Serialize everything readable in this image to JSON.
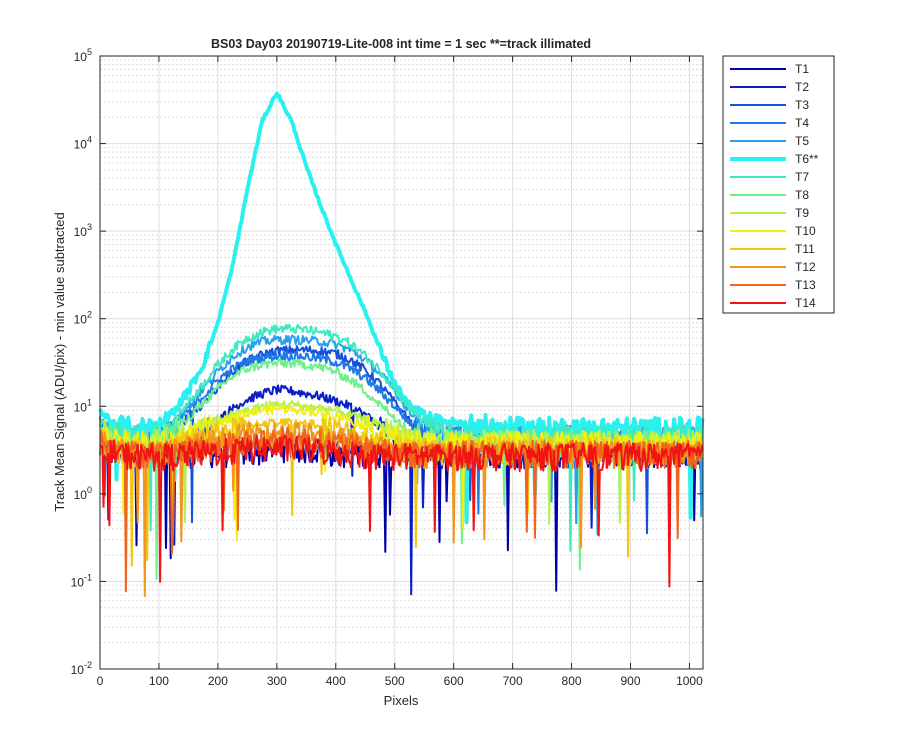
{
  "chart_data": {
    "type": "line",
    "title": "BS03 Day03 20190719-Lite-008 int time = 1 sec    **=track illimated",
    "xlabel": "Pixels",
    "ylabel": "Track Mean Signal (ADU/pix) - min value subtracted",
    "xlim": [
      0,
      1023
    ],
    "ylim": [
      0.01,
      100000
    ],
    "y_scale": "log",
    "grid": true,
    "minor_grid": true,
    "legend_position": "outside-right",
    "x_ticks": [
      "0",
      "100",
      "200",
      "300",
      "400",
      "500",
      "600",
      "700",
      "800",
      "900",
      "1000"
    ],
    "y_ticks": [
      {
        "base": "10",
        "exp": "-2",
        "value": 0.01
      },
      {
        "base": "10",
        "exp": "-1",
        "value": 0.1
      },
      {
        "base": "10",
        "exp": "0",
        "value": 1
      },
      {
        "base": "10",
        "exp": "1",
        "value": 10
      },
      {
        "base": "10",
        "exp": "2",
        "value": 100
      },
      {
        "base": "10",
        "exp": "3",
        "value": 1000
      },
      {
        "base": "10",
        "exp": "4",
        "value": 10000
      },
      {
        "base": "10",
        "exp": "5",
        "value": 100000
      }
    ],
    "x": [
      0,
      25,
      50,
      75,
      100,
      125,
      150,
      175,
      200,
      225,
      250,
      275,
      300,
      325,
      350,
      375,
      400,
      425,
      450,
      475,
      500,
      525,
      550,
      575,
      600,
      625,
      650,
      675,
      700,
      725,
      750,
      775,
      800,
      825,
      850,
      875,
      900,
      925,
      950,
      975,
      1000,
      1023
    ],
    "series": [
      {
        "name": "T1",
        "color": "#0000AA",
        "width": 2,
        "values": [
          4,
          3,
          3,
          3,
          3,
          3,
          3,
          3,
          3,
          3,
          3,
          3.2,
          3.5,
          3.5,
          3.3,
          3.2,
          3,
          3,
          3,
          3,
          3,
          3,
          3,
          3,
          3,
          3,
          3,
          3,
          3,
          3,
          3,
          3,
          3,
          3,
          3,
          3,
          3,
          3,
          3,
          3,
          3,
          3
        ]
      },
      {
        "name": "T2",
        "color": "#0A1EC8",
        "width": 2,
        "values": [
          5,
          4,
          3.5,
          3,
          3,
          3.5,
          4,
          5,
          7,
          9.5,
          12,
          14,
          15.5,
          15,
          14,
          13,
          11.5,
          10,
          8,
          6,
          4.5,
          3.5,
          3,
          3,
          3,
          3,
          3,
          3,
          3,
          3,
          3,
          3,
          3,
          3,
          3,
          3,
          3,
          3,
          3,
          3,
          3,
          3
        ]
      },
      {
        "name": "T3",
        "color": "#1450DC",
        "width": 2,
        "values": [
          6,
          4.5,
          4,
          4,
          4.5,
          5.5,
          7.5,
          11,
          17,
          25,
          33,
          39,
          43,
          44,
          44,
          43,
          40,
          34,
          26,
          18,
          11,
          7,
          5,
          4,
          4,
          4,
          4,
          4,
          4,
          4,
          4,
          4,
          4,
          4,
          4,
          4,
          4,
          4,
          4,
          4,
          4,
          4
        ]
      },
      {
        "name": "T4",
        "color": "#1E78E6",
        "width": 2,
        "values": [
          7,
          5,
          4.5,
          4.5,
          5,
          6.5,
          9,
          13,
          20,
          27,
          33,
          36,
          38,
          38,
          37,
          35,
          32,
          27,
          21,
          15,
          10,
          6.5,
          5,
          4.5,
          4.5,
          4.5,
          4.5,
          4.5,
          4.5,
          4.5,
          4.5,
          4.5,
          4.5,
          4.5,
          4.5,
          4.5,
          4.5,
          4.5,
          4.5,
          4.5,
          4.5,
          4.5
        ]
      },
      {
        "name": "T5",
        "color": "#28A0F0",
        "width": 2,
        "values": [
          7,
          5,
          4.5,
          4.5,
          5,
          6.5,
          10,
          16,
          25,
          37,
          48,
          55,
          58,
          58,
          57,
          55,
          51,
          44,
          34,
          24,
          15,
          9,
          6,
          5,
          4.5,
          4.5,
          4.5,
          4.5,
          4.5,
          4.5,
          4.5,
          4.5,
          4.5,
          4.5,
          4.5,
          4.5,
          4.5,
          4.5,
          4.5,
          4.5,
          4.5,
          4.5
        ]
      },
      {
        "name": "T6**",
        "color": "#2AF0F0",
        "width": 4,
        "values": [
          9,
          6,
          5.5,
          5.5,
          6.5,
          9,
          15,
          30,
          90,
          400,
          3000,
          18000,
          38000,
          18000,
          5500,
          1900,
          720,
          290,
          120,
          45,
          18,
          10,
          8,
          7,
          6.5,
          6,
          6,
          5.5,
          5.5,
          5.5,
          5.5,
          5.5,
          5.5,
          5.5,
          5.5,
          5.5,
          5.5,
          5.5,
          5.5,
          5.5,
          5.5,
          5.5
        ]
      },
      {
        "name": "T7",
        "color": "#40E8C0",
        "width": 2,
        "values": [
          7,
          5,
          4.5,
          4.5,
          5,
          7,
          11,
          18,
          30,
          45,
          60,
          71,
          77,
          77,
          75,
          70,
          63,
          52,
          38,
          26,
          16,
          9.5,
          6.5,
          5,
          4.5,
          4.5,
          4.5,
          4.5,
          4.5,
          4.5,
          4.5,
          4.5,
          4.5,
          4.5,
          4.5,
          4.5,
          4.5,
          4.5,
          4.5,
          4.5,
          4.5,
          4.5
        ]
      },
      {
        "name": "T8",
        "color": "#6EF08C",
        "width": 2,
        "values": [
          6,
          4.5,
          4,
          4,
          4.5,
          5.5,
          7.5,
          11,
          16,
          22,
          27,
          30,
          31,
          31,
          30,
          28,
          25,
          20,
          15,
          10.5,
          7.5,
          5.5,
          4.5,
          4,
          4,
          4,
          4,
          4,
          4,
          4,
          4,
          4,
          4,
          4,
          4,
          4,
          4,
          4,
          4,
          4,
          4,
          4
        ]
      },
      {
        "name": "T9",
        "color": "#B4F050",
        "width": 2,
        "values": [
          5.5,
          4.5,
          4,
          4,
          4,
          4.5,
          5,
          6,
          7,
          8,
          9,
          10,
          10.5,
          10.5,
          10,
          9.5,
          9,
          8,
          7,
          6,
          5,
          4.5,
          4,
          4,
          4,
          4,
          4,
          4,
          4,
          4,
          4,
          4,
          4,
          4,
          4,
          4,
          4,
          4,
          4,
          4,
          4,
          4
        ]
      },
      {
        "name": "T10",
        "color": "#F0F014",
        "width": 2,
        "values": [
          5,
          4,
          3.8,
          3.8,
          3.8,
          4,
          4.5,
          5.5,
          6.5,
          7.5,
          8.5,
          9,
          9.5,
          9.5,
          9,
          8.5,
          8,
          7,
          6,
          5,
          4.5,
          4,
          3.8,
          3.8,
          3.8,
          3.8,
          3.8,
          3.8,
          3.8,
          3.8,
          3.8,
          3.8,
          3.8,
          3.8,
          3.8,
          3.8,
          3.8,
          3.8,
          3.8,
          3.8,
          3.8,
          3.8
        ]
      },
      {
        "name": "T11",
        "color": "#F0C814",
        "width": 2,
        "values": [
          4.5,
          3.5,
          3.3,
          3.3,
          3.3,
          3.5,
          4,
          4.5,
          5,
          5.5,
          6,
          6.5,
          6.5,
          6.5,
          6.3,
          6,
          5.5,
          5,
          4.5,
          4,
          3.5,
          3.3,
          3.3,
          3.3,
          3.3,
          3.3,
          3.3,
          3.3,
          3.3,
          3.3,
          3.3,
          3.3,
          3.3,
          3.3,
          3.3,
          3.3,
          3.3,
          3.3,
          3.3,
          3.3,
          3.3,
          3.3
        ]
      },
      {
        "name": "T12",
        "color": "#F0961E",
        "width": 2,
        "values": [
          4,
          3.3,
          3,
          3,
          3,
          3.2,
          3.5,
          3.8,
          4.2,
          4.5,
          4.8,
          5,
          5,
          5,
          4.8,
          4.6,
          4.3,
          4,
          3.7,
          3.4,
          3.2,
          3,
          3,
          3,
          3,
          3,
          3,
          3,
          3,
          3,
          3,
          3,
          3,
          3,
          3,
          3,
          3,
          3,
          3,
          3,
          3,
          3
        ]
      },
      {
        "name": "T13",
        "color": "#F0641E",
        "width": 2,
        "values": [
          4,
          3.2,
          3,
          3,
          3,
          3,
          3.2,
          3.4,
          3.6,
          3.8,
          4,
          4.2,
          4.3,
          4.3,
          4.2,
          4,
          3.8,
          3.6,
          3.4,
          3.2,
          3,
          3,
          3,
          3,
          3,
          3,
          3,
          3,
          3,
          3,
          3,
          3,
          3,
          3,
          3,
          3,
          3,
          3,
          3,
          3,
          3,
          3
        ]
      },
      {
        "name": "T14",
        "color": "#F01414",
        "width": 2,
        "values": [
          3.5,
          3,
          2.8,
          2.8,
          2.8,
          2.8,
          2.9,
          3,
          3.1,
          3.2,
          3.3,
          3.4,
          3.4,
          3.4,
          3.3,
          3.2,
          3.1,
          3,
          2.9,
          2.8,
          2.8,
          2.8,
          2.8,
          2.8,
          2.8,
          2.8,
          2.8,
          2.8,
          2.8,
          2.8,
          2.8,
          2.8,
          2.8,
          2.8,
          2.8,
          2.8,
          2.8,
          2.8,
          2.8,
          2.8,
          2.8,
          2.8
        ]
      }
    ]
  }
}
